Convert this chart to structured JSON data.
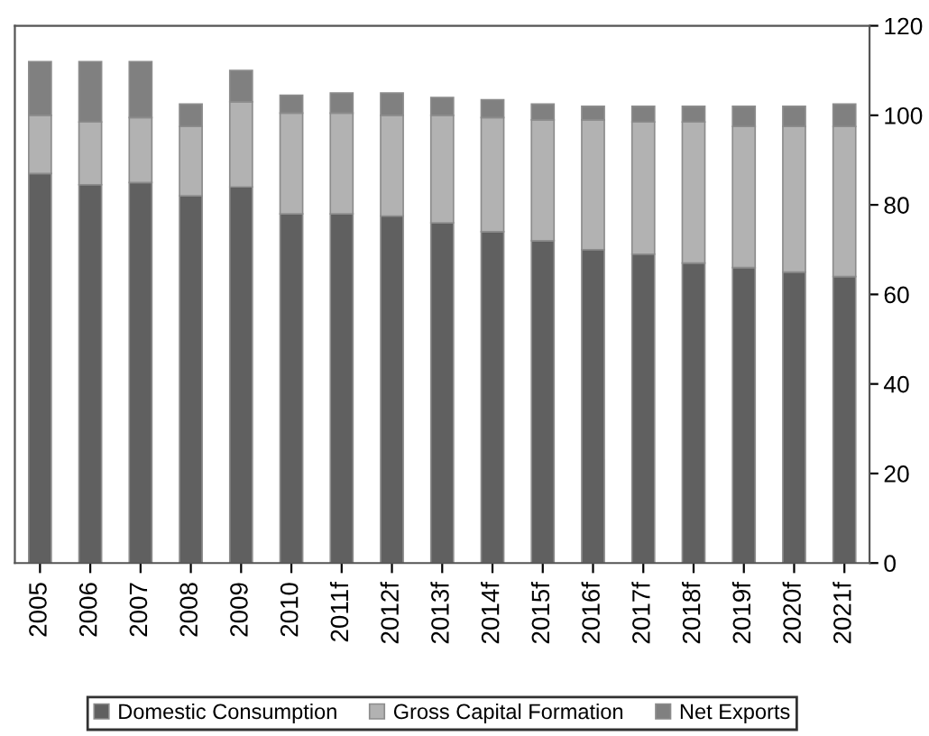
{
  "chart_data": {
    "type": "bar",
    "stacked": true,
    "categories": [
      "2005",
      "2006",
      "2007",
      "2008",
      "2009",
      "2010",
      "2011f",
      "2012f",
      "2013f",
      "2014f",
      "2015f",
      "2016f",
      "2017f",
      "2018f",
      "2019f",
      "2020f",
      "2021f"
    ],
    "series": [
      {
        "name": "Domestic Consumption",
        "color": "#606060",
        "values": [
          87,
          84.5,
          85,
          82,
          84,
          78,
          78,
          77.5,
          76,
          74,
          72,
          70,
          69,
          67,
          66,
          65,
          64
        ]
      },
      {
        "name": "Gross Capital Formation",
        "color": "#b2b2b2",
        "values": [
          13,
          14,
          14.5,
          15.5,
          19,
          22.5,
          22.5,
          22.5,
          24,
          25.5,
          27,
          29,
          29.5,
          31.5,
          31.5,
          32.5,
          33.5
        ]
      },
      {
        "name": "Net Exports",
        "color": "#808080",
        "values": [
          12,
          13.5,
          12.5,
          5,
          7,
          4,
          4.5,
          5,
          4,
          4,
          3.5,
          3,
          3.5,
          3.5,
          4.5,
          4.5,
          5
        ]
      }
    ],
    "ylim": [
      0,
      120
    ],
    "yticks": [
      0,
      20,
      40,
      60,
      80,
      100,
      120
    ],
    "grid": false,
    "legend": "bottom"
  }
}
